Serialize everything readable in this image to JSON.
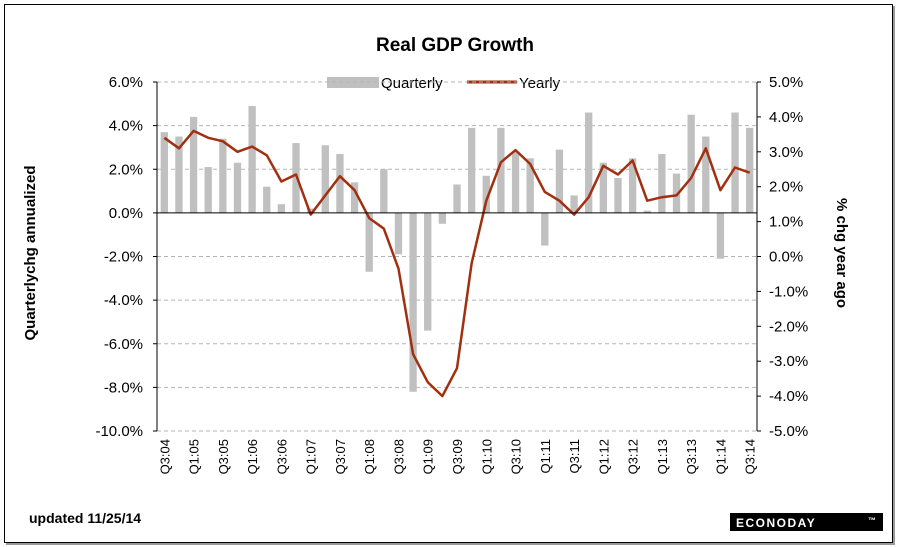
{
  "chart_data": {
    "type": "bar",
    "title": "Real GDP Growth",
    "ylabel_left": "Quarterlychg annualized",
    "ylabel_right": "% chg year ago",
    "y_left_ticks": [
      "6.0%",
      "4.0%",
      "2.0%",
      "0.0%",
      "-2.0%",
      "-4.0%",
      "-6.0%",
      "-8.0%",
      "-10.0%"
    ],
    "y_right_ticks": [
      "5.0%",
      "4.0%",
      "3.0%",
      "2.0%",
      "1.0%",
      "0.0%",
      "-1.0%",
      "-2.0%",
      "-3.0%",
      "-4.0%",
      "-5.0%"
    ],
    "ylim_left": [
      -10,
      6
    ],
    "ylim_right": [
      -5,
      5
    ],
    "grid": true,
    "legend_position": "top",
    "x_tick_labels": [
      "Q3:04",
      "Q1:05",
      "Q3:05",
      "Q1:06",
      "Q3:06",
      "Q1:07",
      "Q3:07",
      "Q1:08",
      "Q3:08",
      "Q1:09",
      "Q3:09",
      "Q1:10",
      "Q3:10",
      "Q1:11",
      "Q3:11",
      "Q1:12",
      "Q3:12",
      "Q1:13",
      "Q3:13",
      "Q1:14",
      "Q3:14"
    ],
    "series": [
      {
        "name": "Quarterly",
        "type": "bar",
        "axis": "left",
        "color": "#c0c0c0",
        "values": [
          3.7,
          3.5,
          4.4,
          2.1,
          3.4,
          2.3,
          4.9,
          1.2,
          0.4,
          3.2,
          0.2,
          3.1,
          2.7,
          1.4,
          -2.7,
          2.0,
          -1.9,
          -8.2,
          -5.4,
          -0.5,
          1.3,
          3.9,
          1.7,
          3.9,
          2.8,
          2.5,
          -1.5,
          2.9,
          0.8,
          4.6,
          2.3,
          1.6,
          2.5,
          0.1,
          2.7,
          1.8,
          4.5,
          3.5,
          -2.1,
          4.6,
          3.9
        ]
      },
      {
        "name": "Yearly",
        "type": "line",
        "axis": "right",
        "color": "#a0300f",
        "values": [
          3.4,
          3.1,
          3.6,
          3.4,
          3.3,
          3.0,
          3.15,
          2.9,
          2.15,
          2.35,
          1.2,
          1.75,
          2.3,
          1.9,
          1.1,
          0.8,
          -0.35,
          -2.8,
          -3.6,
          -4.0,
          -3.2,
          -0.2,
          1.6,
          2.7,
          3.05,
          2.65,
          1.85,
          1.6,
          1.2,
          1.7,
          2.6,
          2.35,
          2.75,
          1.6,
          1.7,
          1.75,
          2.25,
          3.1,
          1.9,
          2.55,
          2.4
        ]
      }
    ]
  },
  "footer": {
    "updated": "updated 11/25/14",
    "brand": "ECONODAY"
  }
}
